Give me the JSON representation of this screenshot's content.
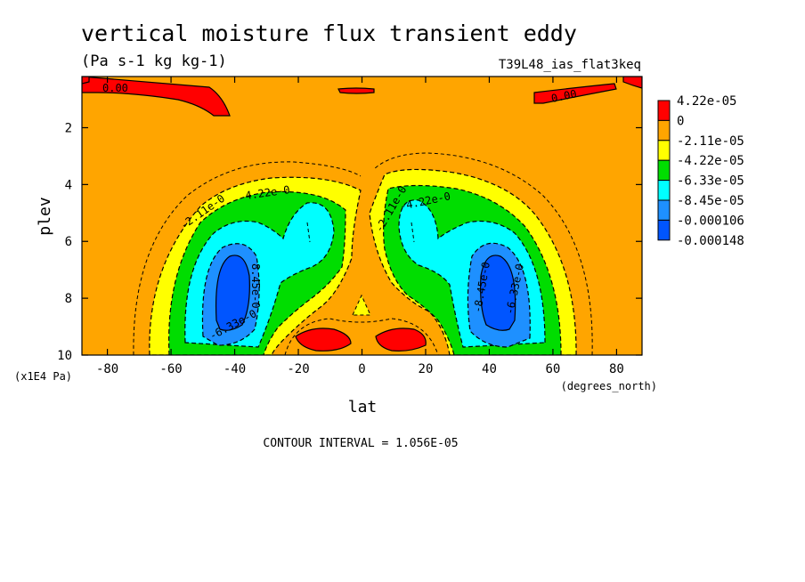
{
  "chart_data": {
    "type": "contour",
    "title": "vertical moisture flux transient eddy",
    "units": "(Pa s-1 kg kg-1)",
    "run_label": "T39L48_ias_flat3keq",
    "xlabel": "lat",
    "x_units": "(degrees_north)",
    "ylabel": "plev",
    "y_units": "(x1E4 Pa)",
    "xlim": [
      -88,
      88
    ],
    "ylim": [
      10,
      0.2
    ],
    "x_ticks": [
      -80,
      -60,
      -40,
      -20,
      0,
      20,
      40,
      60,
      80
    ],
    "y_ticks": [
      2,
      4,
      6,
      8,
      10
    ],
    "contour_interval": "CONTOUR INTERVAL = 1.056E-05",
    "colorbar": {
      "labels": [
        "4.22e-05",
        "0",
        "-2.11e-05",
        "-4.22e-05",
        "-6.33e-05",
        "-8.45e-05",
        "-0.000106",
        "-0.000148"
      ],
      "colors": [
        "#ff0000",
        "#ffa500",
        "#ffff00",
        "#00dd00",
        "#00ffff",
        "#1e90ff",
        "#0055ff"
      ]
    },
    "contour_labels": [
      "0.00",
      "0.00",
      "-2.11e-0",
      "4.22e-0",
      "8.45e-0",
      "-6.33e-0",
      "-2.11e-0",
      "-4.22e-0",
      "-8.45e-0",
      "-6.33e-0"
    ],
    "features": [
      {
        "name": "southern tropospheric minimum",
        "lat": -40,
        "plev": 7.6,
        "value_approx": -0.000148
      },
      {
        "name": "northern tropospheric minimum",
        "lat": 42,
        "plev": 7.6,
        "value_approx": -0.000148
      },
      {
        "name": "southern subtropical secondary minimum",
        "lat": -17,
        "plev": 5.8,
        "value_approx": -8.45e-05
      },
      {
        "name": "northern subtropical secondary minimum",
        "lat": 20,
        "plev": 5.8,
        "value_approx": -8.45e-05
      },
      {
        "name": "near-surface positive cell south",
        "lat": -15,
        "plev": 9.4,
        "value_approx": 4.22e-05
      },
      {
        "name": "near-surface positive cell north",
        "lat": 14,
        "plev": 9.4,
        "value_approx": 4.22e-05
      },
      {
        "name": "upper-level positive band south",
        "lat": -70,
        "plev": 0.9,
        "value_approx": 4.22e-05
      },
      {
        "name": "upper-level positive band north",
        "lat": 70,
        "plev": 0.7,
        "value_approx": 4.22e-05
      }
    ]
  }
}
